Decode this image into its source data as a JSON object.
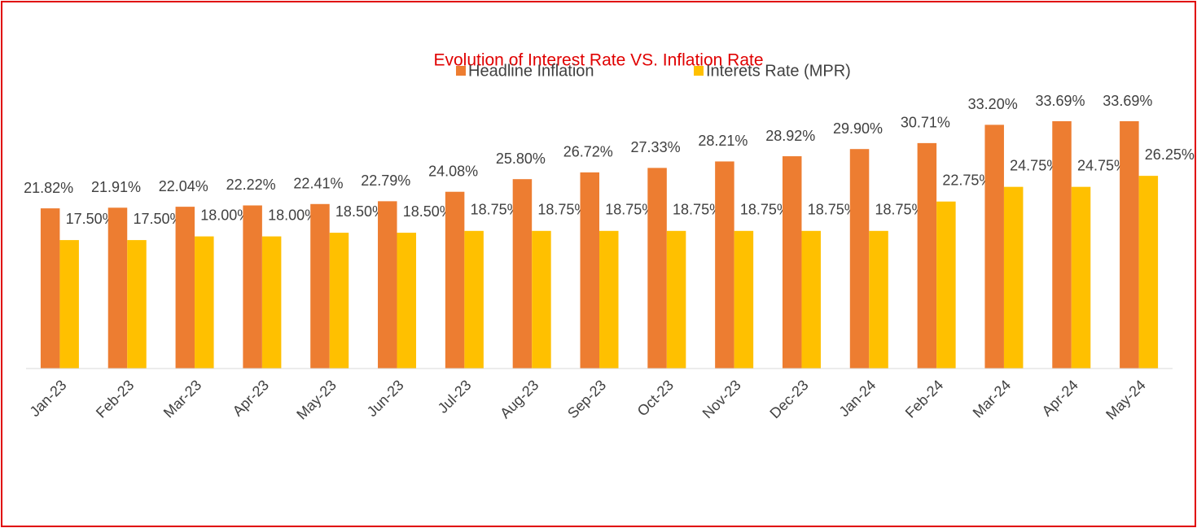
{
  "chart_data": {
    "type": "bar",
    "title": "Evolution of Interest Rate VS. Inflation Rate",
    "categories": [
      "Jan-23",
      "Feb-23",
      "Mar-23",
      "Apr-23",
      "May-23",
      "Jun-23",
      "Jul-23",
      "Aug-23",
      "Sep-23",
      "Oct-23",
      "Nov-23",
      "Dec-23",
      "Jan-24",
      "Feb-24",
      "Mar-24",
      "Apr-24",
      "May-24"
    ],
    "series": [
      {
        "name": "Headline Inflation",
        "color": "#ED7D31",
        "values": [
          21.82,
          21.91,
          22.04,
          22.22,
          22.41,
          22.79,
          24.08,
          25.8,
          26.72,
          27.33,
          28.21,
          28.92,
          29.9,
          30.71,
          33.2,
          33.69,
          33.69
        ],
        "value_labels": [
          "21.82%",
          "21.91%",
          "22.04%",
          "22.22%",
          "22.41%",
          "22.79%",
          "24.08%",
          "25.80%",
          "26.72%",
          "27.33%",
          "28.21%",
          "28.92%",
          "29.90%",
          "30.71%",
          "33.20%",
          "33.69%",
          "33.69%"
        ]
      },
      {
        "name": "Interets Rate (MPR)",
        "color": "#FFC000",
        "values": [
          17.5,
          17.5,
          18.0,
          18.0,
          18.5,
          18.5,
          18.75,
          18.75,
          18.75,
          18.75,
          18.75,
          18.75,
          18.75,
          22.75,
          24.75,
          24.75,
          26.25
        ],
        "value_labels": [
          "17.50%",
          "17.50%",
          "18.00%",
          "18.00%",
          "18.50%",
          "18.50%",
          "18.75%",
          "18.75%",
          "18.75%",
          "18.75%",
          "18.75%",
          "18.75%",
          "18.75%",
          "22.75%",
          "24.75%",
          "24.75%",
          "26.25%"
        ]
      }
    ],
    "legend": "top"
  }
}
